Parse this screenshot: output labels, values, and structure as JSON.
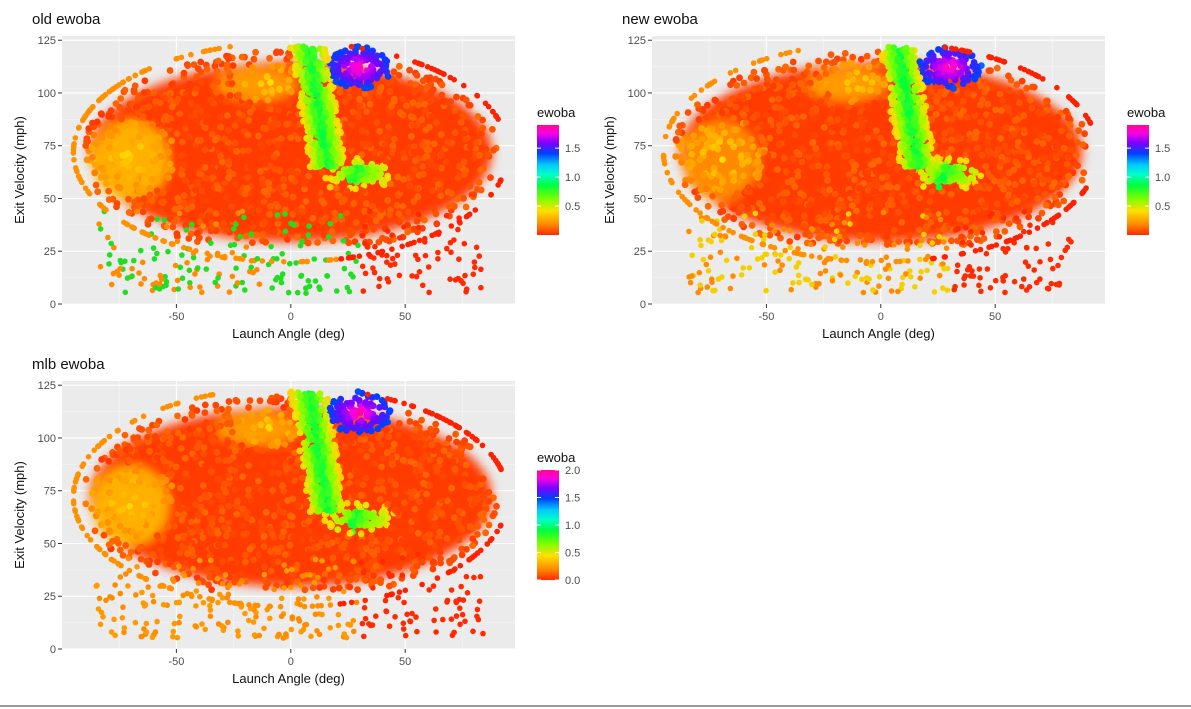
{
  "chart_data": [
    {
      "type": "scatter",
      "title": "old ewoba",
      "xlabel": "Launch Angle (deg)",
      "ylabel": "Exit Velocity (mph)",
      "xlim": [
        -100,
        98
      ],
      "ylim": [
        0,
        127
      ],
      "xticks": [
        -50,
        0,
        50
      ],
      "yticks": [
        0,
        25,
        50,
        75,
        100,
        125
      ],
      "grid": true,
      "legend": {
        "title": "ewoba",
        "position": "right",
        "ticks": [
          "0.5",
          "1.0",
          "1.5"
        ],
        "tick_values": [
          0.5,
          1.0,
          1.5
        ],
        "range": [
          0.0,
          1.9
        ]
      },
      "sparse_low_ev_color": "#22dd22",
      "bands": [
        {
          "x": [
            -88,
            90
          ],
          "y": [
            30,
            115
          ],
          "ewoba": 0.05
        },
        {
          "x": [
            -10,
            40
          ],
          "y": [
            62,
            122
          ],
          "ewoba": 0.75
        },
        {
          "x": [
            20,
            45
          ],
          "y": [
            98,
            122
          ],
          "ewoba": 1.85
        }
      ]
    },
    {
      "type": "scatter",
      "title": "new ewoba",
      "xlabel": "Launch Angle (deg)",
      "ylabel": "Exit Velocity (mph)",
      "xlim": [
        -100,
        98
      ],
      "ylim": [
        0,
        127
      ],
      "xticks": [
        -50,
        0,
        50
      ],
      "yticks": [
        0,
        25,
        50,
        75,
        100,
        125
      ],
      "grid": true,
      "legend": {
        "title": "ewoba",
        "position": "right",
        "ticks": [
          "0.5",
          "1.0",
          "1.5"
        ],
        "tick_values": [
          0.5,
          1.0,
          1.5
        ],
        "range": [
          0.0,
          1.9
        ]
      },
      "sparse_low_ev_color": "#f5d000",
      "bands": [
        {
          "x": [
            -88,
            90
          ],
          "y": [
            30,
            115
          ],
          "ewoba": 0.05
        },
        {
          "x": [
            -10,
            40
          ],
          "y": [
            62,
            122
          ],
          "ewoba": 0.75
        },
        {
          "x": [
            20,
            45
          ],
          "y": [
            98,
            122
          ],
          "ewoba": 1.85
        }
      ]
    },
    {
      "type": "scatter",
      "title": "mlb ewoba",
      "xlabel": "Launch Angle (deg)",
      "ylabel": "Exit Velocity (mph)",
      "xlim": [
        -100,
        98
      ],
      "ylim": [
        0,
        127
      ],
      "xticks": [
        -50,
        0,
        50
      ],
      "yticks": [
        0,
        25,
        50,
        75,
        100,
        125
      ],
      "grid": true,
      "legend": {
        "title": "ewoba",
        "position": "right",
        "ticks": [
          "0.0",
          "0.5",
          "1.0",
          "1.5",
          "2.0"
        ],
        "tick_values": [
          0.0,
          0.5,
          1.0,
          1.5,
          2.0
        ],
        "range": [
          0.0,
          2.0
        ]
      },
      "sparse_low_ev_color": "#ff9a00",
      "bands": [
        {
          "x": [
            -88,
            90
          ],
          "y": [
            30,
            115
          ],
          "ewoba": 0.05
        },
        {
          "x": [
            -10,
            40
          ],
          "y": [
            62,
            122
          ],
          "ewoba": 0.75
        },
        {
          "x": [
            20,
            45
          ],
          "y": [
            98,
            122
          ],
          "ewoba": 1.95
        }
      ]
    }
  ]
}
